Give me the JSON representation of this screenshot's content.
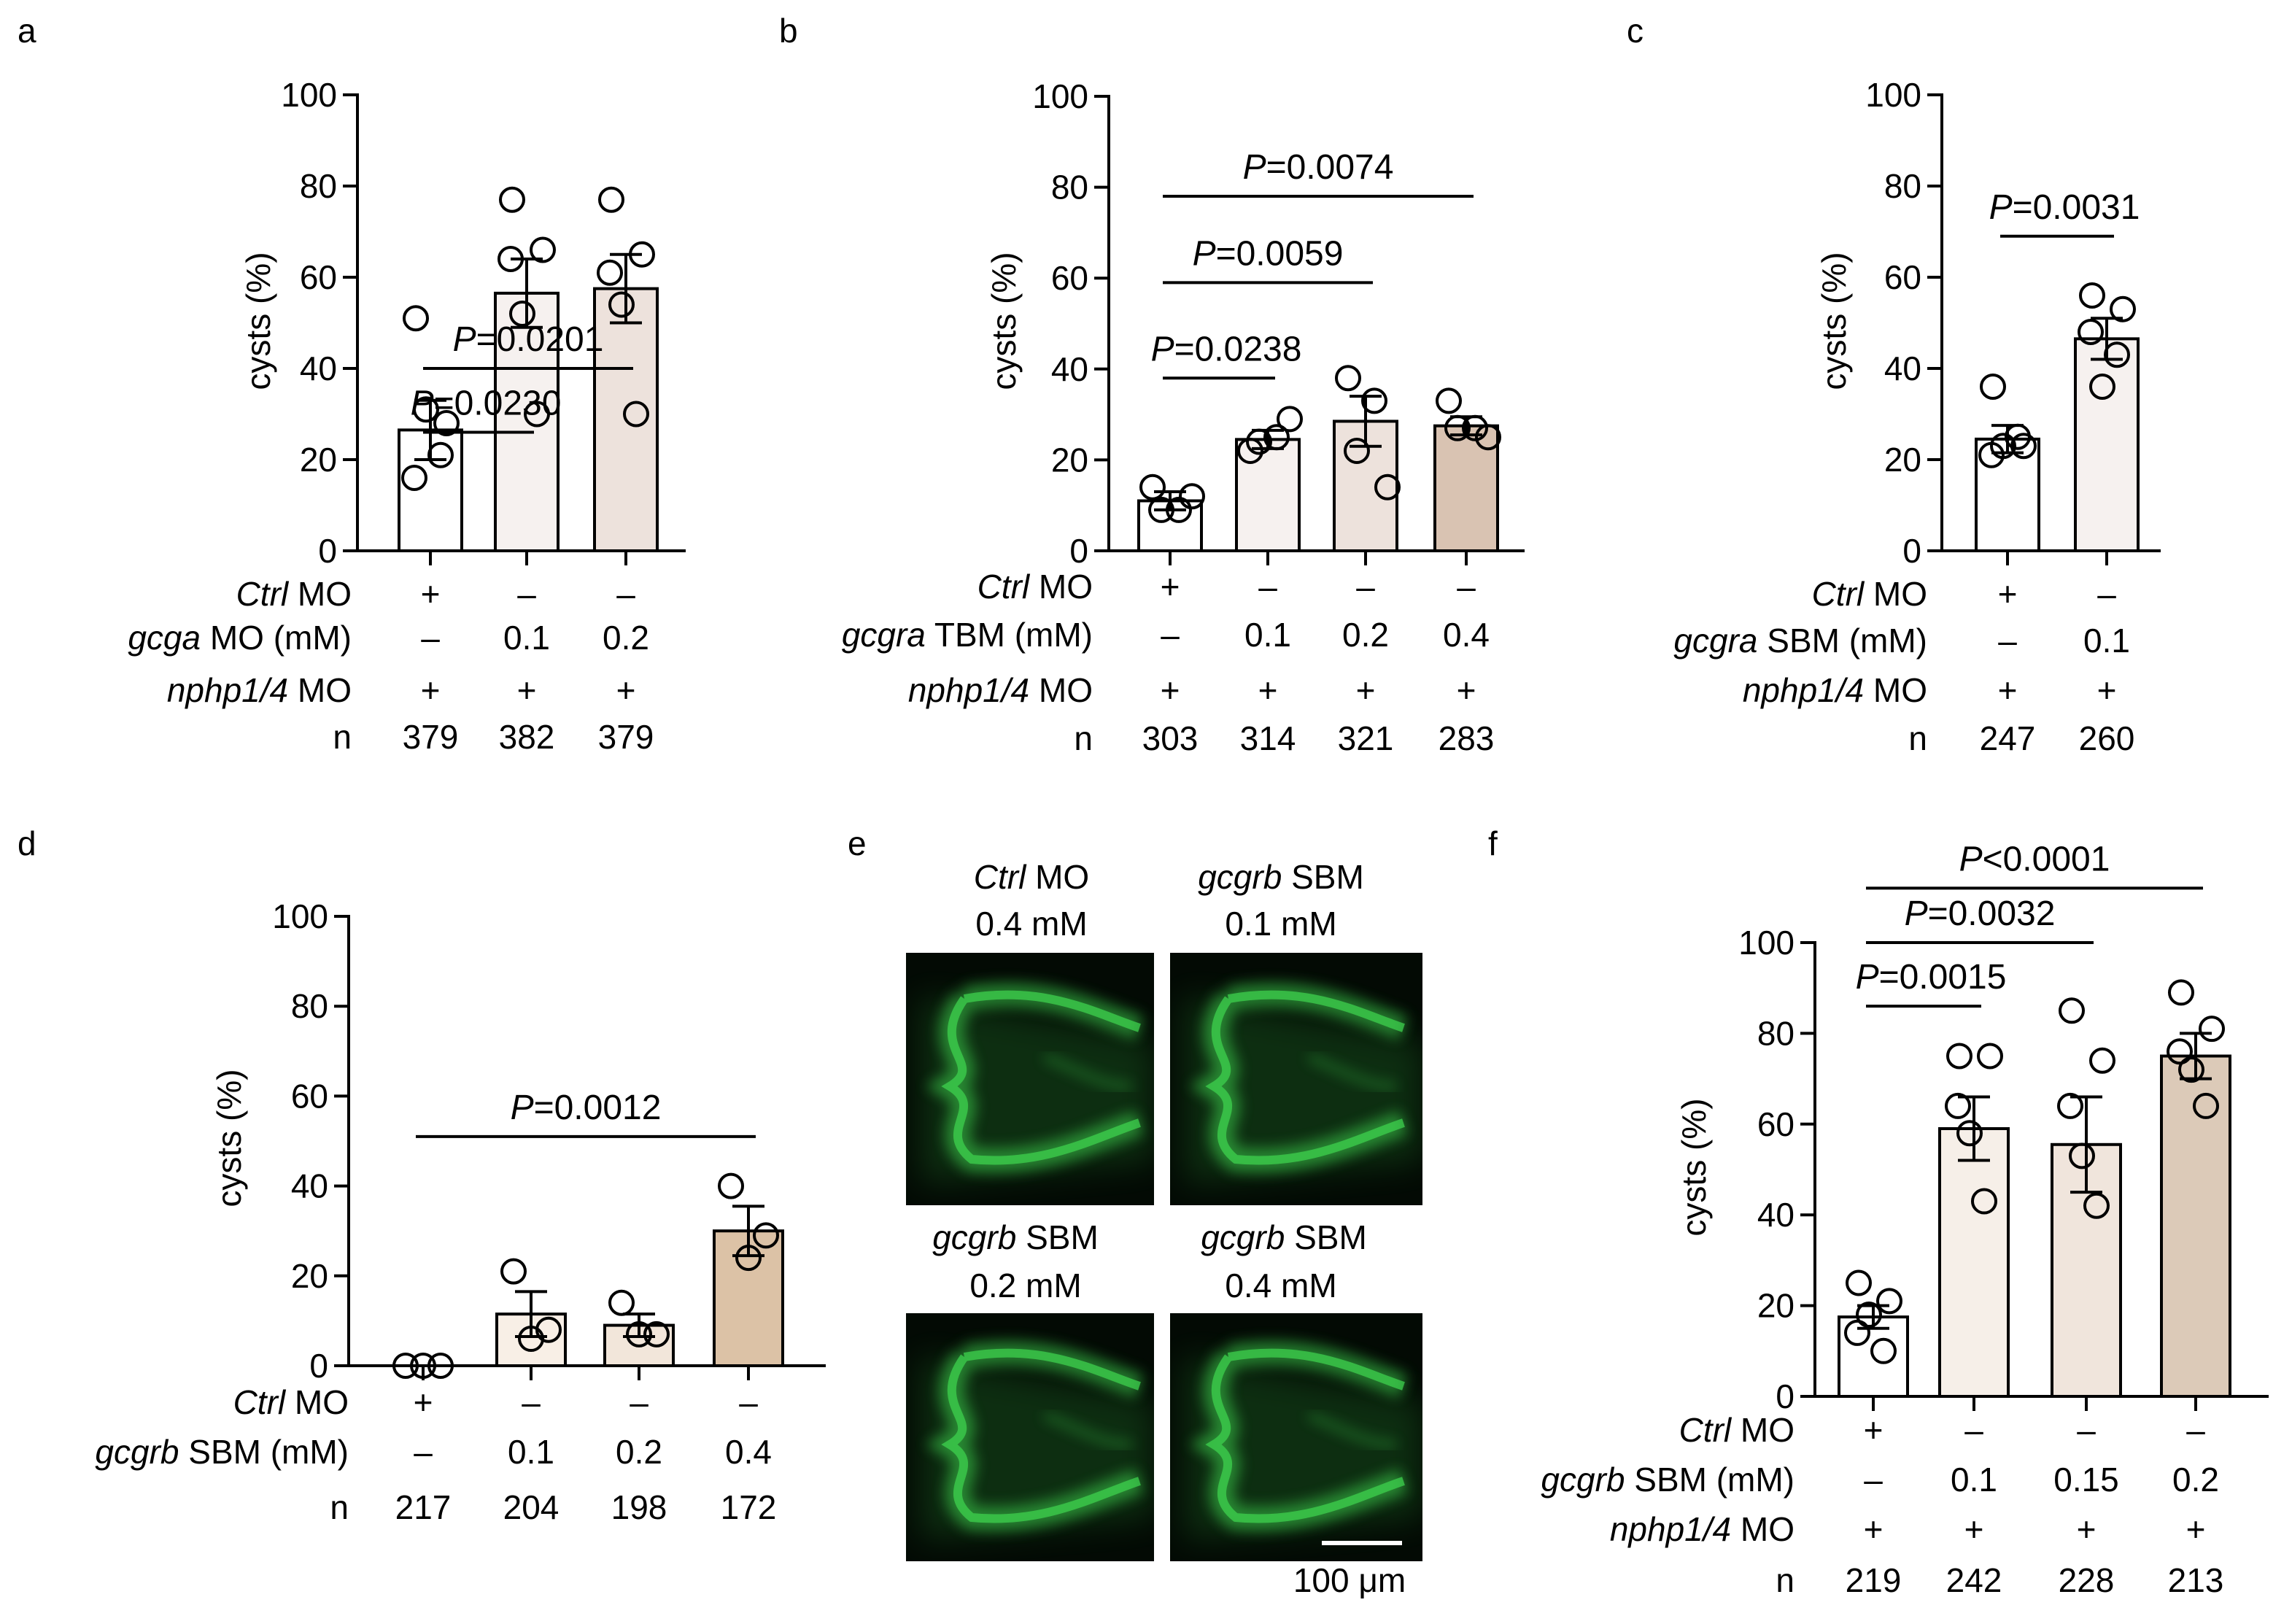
{
  "colors": {
    "bar_white": "#ffffff",
    "bar_c1": "#f6f1ef",
    "bar_c2": "#ede2dc",
    "bar_c3": "#dcc9bf",
    "bar_c4": "#d9c3b2",
    "bar_b1": "#f8efe6",
    "bar_b2": "#f2e6da",
    "bar_b3": "#dcc2a6",
    "bar_f1": "#f6efe8",
    "bar_f2": "#f0e5dc",
    "bar_f3": "#dccab8",
    "micrograph_bg": "#030a04",
    "fluorescence": "#3ed04e"
  },
  "chart_data": [
    {
      "panel": "a",
      "type": "bar",
      "ylabel": "cysts (%)",
      "ylim": [
        0,
        100
      ],
      "yticks": [
        "0",
        "20",
        "40",
        "60",
        "80",
        "100"
      ],
      "values": [
        26.5,
        56.5,
        57.5
      ],
      "sem": [
        6.5,
        7.5,
        7.5
      ],
      "points": [
        [
          51,
          28,
          16,
          21,
          31
        ],
        [
          77,
          66,
          64,
          30,
          52
        ],
        [
          77,
          65,
          61,
          30,
          54
        ]
      ],
      "rows": [
        {
          "label_italic": "Ctrl",
          "label_rest": " MO",
          "cells": [
            "+",
            "–",
            "–"
          ]
        },
        {
          "label_italic": "gcga",
          "label_rest": " MO (mM)",
          "cells": [
            "–",
            "0.1",
            "0.2"
          ]
        },
        {
          "label_italic": "nphp1/4",
          "label_rest": " MO",
          "cells": [
            "+",
            "+",
            "+"
          ]
        },
        {
          "label_italic": "",
          "label_rest": "n",
          "cells": [
            "379",
            "382",
            "379"
          ]
        }
      ],
      "comparisons": [
        {
          "from": 0,
          "to": 1,
          "value": 26,
          "p_italic": "P",
          "p_rest": "=0.0230"
        },
        {
          "from": 0,
          "to": 2,
          "value": 40,
          "p_italic": "P",
          "p_rest": "=0.0201"
        }
      ]
    },
    {
      "panel": "b",
      "type": "bar",
      "ylabel": "cysts (%)",
      "ylim": [
        0,
        100
      ],
      "yticks": [
        "0",
        "20",
        "40",
        "60",
        "80",
        "100"
      ],
      "values": [
        11,
        24.5,
        28.5,
        27.5
      ],
      "sem": [
        2,
        2,
        5.5,
        2
      ],
      "points": [
        [
          14,
          9,
          12,
          9
        ],
        [
          22,
          25,
          29,
          24
        ],
        [
          38,
          33,
          14,
          22
        ],
        [
          33,
          27,
          25,
          27
        ]
      ],
      "rows": [
        {
          "label_italic": "Ctrl",
          "label_rest": " MO",
          "cells": [
            "+",
            "–",
            "–",
            "–"
          ]
        },
        {
          "label_italic": "gcgra",
          "label_rest": " TBM (mM)",
          "cells": [
            "–",
            "0.1",
            "0.2",
            "0.4"
          ]
        },
        {
          "label_italic": "nphp1/4",
          "label_rest": " MO",
          "cells": [
            "+",
            "+",
            "+",
            "+"
          ]
        },
        {
          "label_italic": "",
          "label_rest": "n",
          "cells": [
            "303",
            "314",
            "321",
            "283"
          ]
        }
      ],
      "comparisons": [
        {
          "from": 0,
          "to": 1,
          "value": 38,
          "p_italic": "P",
          "p_rest": "=0.0238"
        },
        {
          "from": 0,
          "to": 2,
          "value": 59,
          "p_italic": "P",
          "p_rest": "=0.0059"
        },
        {
          "from": 0,
          "to": 3,
          "value": 78,
          "p_italic": "P",
          "p_rest": "=0.0074"
        }
      ]
    },
    {
      "panel": "c",
      "type": "bar",
      "ylabel": "cysts (%)",
      "ylim": [
        0,
        100
      ],
      "yticks": [
        "0",
        "20",
        "40",
        "60",
        "80",
        "100"
      ],
      "values": [
        24.5,
        46.5
      ],
      "sem": [
        3,
        4.5
      ],
      "points": [
        [
          36,
          23,
          21,
          25,
          23
        ],
        [
          56,
          53,
          48,
          43,
          36
        ]
      ],
      "rows": [
        {
          "label_italic": "Ctrl",
          "label_rest": " MO",
          "cells": [
            "+",
            "–"
          ]
        },
        {
          "label_italic": "gcgra",
          "label_rest": " SBM (mM)",
          "cells": [
            "–",
            "0.1"
          ]
        },
        {
          "label_italic": "nphp1/4",
          "label_rest": " MO",
          "cells": [
            "+",
            "+"
          ]
        },
        {
          "label_italic": "",
          "label_rest": "n",
          "cells": [
            "247",
            "260"
          ]
        }
      ],
      "comparisons": [
        {
          "from": 0,
          "to": 1,
          "value": 69,
          "p_italic": "P",
          "p_rest": "=0.0031"
        }
      ]
    },
    {
      "panel": "d",
      "type": "bar",
      "ylabel": "cysts (%)",
      "ylim": [
        0,
        100
      ],
      "yticks": [
        "0",
        "20",
        "40",
        "60",
        "80",
        "100"
      ],
      "values": [
        0,
        11.5,
        9,
        30
      ],
      "sem": [
        0,
        5,
        2.5,
        5.5
      ],
      "points": [
        [
          0,
          0,
          0
        ],
        [
          21,
          6,
          8
        ],
        [
          14,
          7,
          7
        ],
        [
          40,
          24,
          29
        ]
      ],
      "rows": [
        {
          "label_italic": "Ctrl",
          "label_rest": " MO",
          "cells": [
            "+",
            "–",
            "–",
            "–"
          ]
        },
        {
          "label_italic": "gcgrb",
          "label_rest": " SBM (mM)",
          "cells": [
            "–",
            "0.1",
            "0.2",
            "0.4"
          ]
        },
        {
          "label_italic": "",
          "label_rest": "n",
          "cells": [
            "217",
            "204",
            "198",
            "172"
          ]
        }
      ],
      "comparisons": [
        {
          "from": 0,
          "to": 3,
          "value": 51,
          "p_italic": "P",
          "p_rest": "=0.0012"
        }
      ]
    },
    {
      "panel": "f",
      "type": "bar",
      "ylabel": "cysts (%)",
      "ylim": [
        0,
        100
      ],
      "yticks": [
        "0",
        "20",
        "40",
        "60",
        "80",
        "100"
      ],
      "values": [
        17.5,
        59,
        55.5,
        75
      ],
      "sem": [
        2.5,
        7,
        10.5,
        5
      ],
      "points": [
        [
          25,
          21,
          14,
          10,
          18
        ],
        [
          75,
          75,
          64,
          43,
          58
        ],
        [
          85,
          74,
          64,
          42,
          53
        ],
        [
          89,
          81,
          76,
          64,
          72
        ]
      ],
      "rows": [
        {
          "label_italic": "Ctrl",
          "label_rest": " MO",
          "cells": [
            "+",
            "–",
            "–",
            "–"
          ]
        },
        {
          "label_italic": "gcgrb",
          "label_rest": " SBM (mM)",
          "cells": [
            "–",
            "0.1",
            "0.15",
            "0.2"
          ]
        },
        {
          "label_italic": "nphp1/4",
          "label_rest": " MO",
          "cells": [
            "+",
            "+",
            "+",
            "+"
          ]
        },
        {
          "label_italic": "",
          "label_rest": "n",
          "cells": [
            "219",
            "242",
            "228",
            "213"
          ]
        }
      ],
      "comparisons": [
        {
          "from": 0,
          "to": 1,
          "value": 86,
          "p_italic": "P",
          "p_rest": "=0.0015"
        },
        {
          "from": 0,
          "to": 2,
          "value": 100,
          "p_italic": "P",
          "p_rest": "=0.0032"
        },
        {
          "from": 0,
          "to": 3,
          "value": 112,
          "p_italic": "P",
          "p_rest": "<0.0001"
        }
      ]
    }
  ],
  "panel_labels": [
    "a",
    "b",
    "c",
    "d",
    "e",
    "f"
  ],
  "micrographs": {
    "tiles": [
      {
        "italic": "Ctrl",
        "rest": " MO",
        "line2": "0.4 mM"
      },
      {
        "italic": "gcgrb",
        "rest": " SBM",
        "line2": "0.1 mM"
      },
      {
        "italic": "gcgrb",
        "rest": " SBM",
        "line2": "0.2 mM"
      },
      {
        "italic": "gcgrb",
        "rest": " SBM",
        "line2": "0.4 mM"
      }
    ],
    "scale_bar_label": "100 μm"
  }
}
